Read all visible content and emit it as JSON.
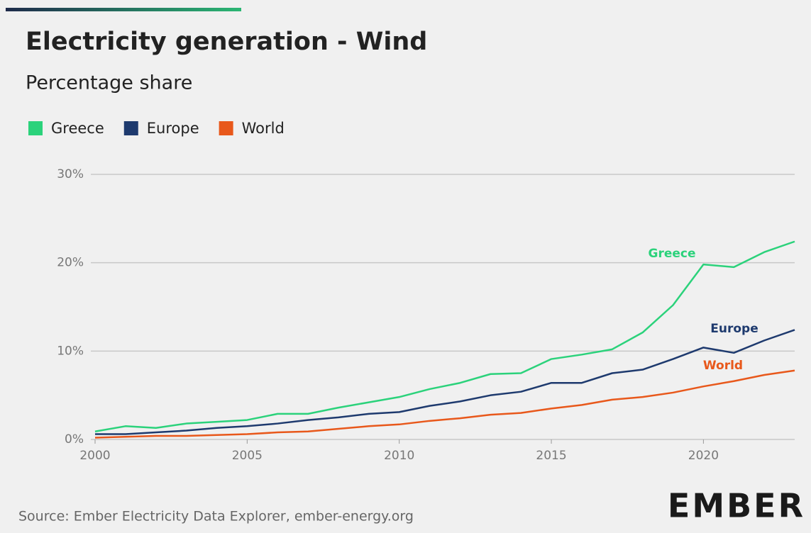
{
  "chart_data": {
    "type": "line",
    "title": "Electricity generation - Wind",
    "subtitle": "Percentage share",
    "source": "Source: Ember Electricity Data Explorer, ember-energy.org",
    "logo": "EMBER",
    "x": [
      2000,
      2001,
      2002,
      2003,
      2004,
      2005,
      2006,
      2007,
      2008,
      2009,
      2010,
      2011,
      2012,
      2013,
      2014,
      2015,
      2016,
      2017,
      2018,
      2019,
      2020,
      2021,
      2022,
      2023
    ],
    "series": [
      {
        "name": "Greece",
        "color": "#2bd27b",
        "values": [
          0.9,
          1.5,
          1.3,
          1.8,
          2.0,
          2.2,
          2.9,
          2.9,
          3.6,
          4.2,
          4.8,
          5.7,
          6.4,
          7.4,
          7.5,
          9.1,
          9.6,
          10.2,
          12.1,
          15.2,
          19.8,
          19.5,
          21.2,
          22.4
        ]
      },
      {
        "name": "Europe",
        "color": "#1e3a6e",
        "values": [
          0.6,
          0.6,
          0.8,
          1.0,
          1.3,
          1.5,
          1.8,
          2.2,
          2.5,
          2.9,
          3.1,
          3.8,
          4.3,
          5.0,
          5.4,
          6.4,
          6.4,
          7.5,
          7.9,
          9.1,
          10.4,
          9.8,
          11.2,
          12.4
        ]
      },
      {
        "name": "World",
        "color": "#e8581b",
        "values": [
          0.2,
          0.3,
          0.4,
          0.4,
          0.5,
          0.6,
          0.8,
          0.9,
          1.2,
          1.5,
          1.7,
          2.1,
          2.4,
          2.8,
          3.0,
          3.5,
          3.9,
          4.5,
          4.8,
          5.3,
          6.0,
          6.6,
          7.3,
          7.8
        ]
      }
    ],
    "xlim": [
      2000,
      2023
    ],
    "xticks": [
      2000,
      2005,
      2010,
      2015,
      2020
    ],
    "ylim": [
      0,
      30
    ],
    "yticks": [
      {
        "value": 0,
        "label": "0%"
      },
      {
        "value": 10,
        "label": "10%"
      },
      {
        "value": 20,
        "label": "20%"
      },
      {
        "value": 30,
        "label": "30%"
      }
    ],
    "grid": true
  }
}
